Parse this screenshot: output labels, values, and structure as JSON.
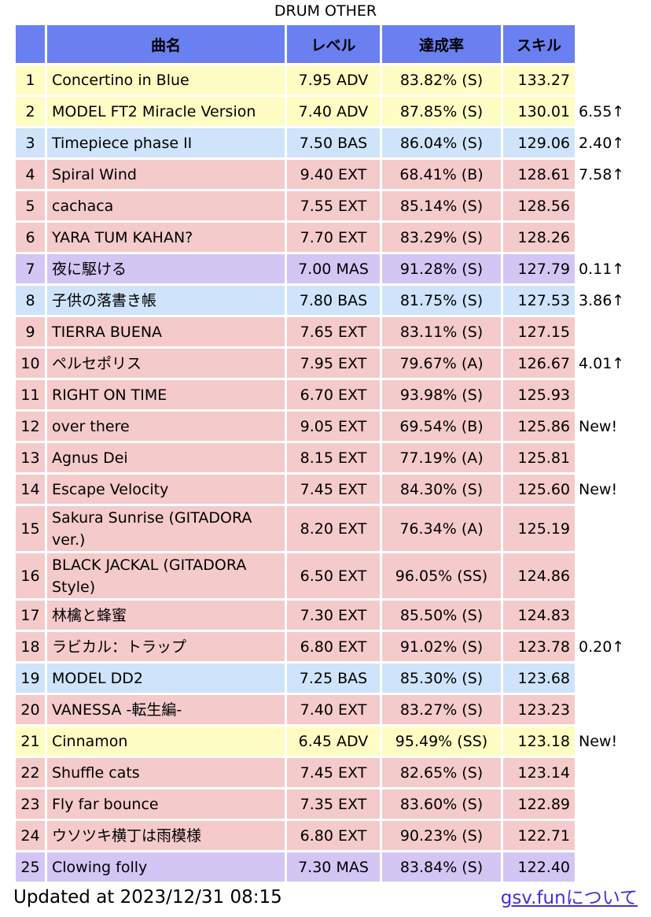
{
  "caption": "DRUM OTHER",
  "headers": {
    "num": "",
    "name": "曲名",
    "level": "レベル",
    "rate": "達成率",
    "skill": "スキル"
  },
  "difficulty_colors": {
    "BAS": "#cfe4fa",
    "ADV": "#fdfdc4",
    "EXT": "#f4cacb",
    "MAS": "#d3c6f4",
    "header": "#6a80f0"
  },
  "rows": [
    {
      "num": "1",
      "name": "Concertino in Blue",
      "level": "7.95 ADV",
      "rate": "83.82% (S)",
      "skill": "133.27",
      "diff": "",
      "cls": "adv"
    },
    {
      "num": "2",
      "name": "MODEL FT2 Miracle Version",
      "level": "7.40 ADV",
      "rate": "87.85% (S)",
      "skill": "130.01",
      "diff": "6.55↑",
      "cls": "adv"
    },
    {
      "num": "3",
      "name": "Timepiece phase II",
      "level": "7.50 BAS",
      "rate": "86.04% (S)",
      "skill": "129.06",
      "diff": "2.40↑",
      "cls": "bas"
    },
    {
      "num": "4",
      "name": "Spiral Wind",
      "level": "9.40 EXT",
      "rate": "68.41% (B)",
      "skill": "128.61",
      "diff": "7.58↑",
      "cls": "ext"
    },
    {
      "num": "5",
      "name": "cachaca",
      "level": "7.55 EXT",
      "rate": "85.14% (S)",
      "skill": "128.56",
      "diff": "",
      "cls": "ext"
    },
    {
      "num": "6",
      "name": "YARA TUM KAHAN?",
      "level": "7.70 EXT",
      "rate": "83.29% (S)",
      "skill": "128.26",
      "diff": "",
      "cls": "ext"
    },
    {
      "num": "7",
      "name": "夜に駆ける",
      "level": "7.00 MAS",
      "rate": "91.28% (S)",
      "skill": "127.79",
      "diff": "0.11↑",
      "cls": "mas"
    },
    {
      "num": "8",
      "name": "子供の落書き帳",
      "level": "7.80 BAS",
      "rate": "81.75% (S)",
      "skill": "127.53",
      "diff": "3.86↑",
      "cls": "bas"
    },
    {
      "num": "9",
      "name": "TIERRA BUENA",
      "level": "7.65 EXT",
      "rate": "83.11% (S)",
      "skill": "127.15",
      "diff": "",
      "cls": "ext"
    },
    {
      "num": "10",
      "name": "ペルセポリス",
      "level": "7.95 EXT",
      "rate": "79.67% (A)",
      "skill": "126.67",
      "diff": "4.01↑",
      "cls": "ext"
    },
    {
      "num": "11",
      "name": "RIGHT ON TIME",
      "level": "6.70 EXT",
      "rate": "93.98% (S)",
      "skill": "125.93",
      "diff": "",
      "cls": "ext"
    },
    {
      "num": "12",
      "name": "over there",
      "level": "9.05 EXT",
      "rate": "69.54% (B)",
      "skill": "125.86",
      "diff": "New!",
      "cls": "ext"
    },
    {
      "num": "13",
      "name": "Agnus Dei",
      "level": "8.15 EXT",
      "rate": "77.19% (A)",
      "skill": "125.81",
      "diff": "",
      "cls": "ext"
    },
    {
      "num": "14",
      "name": "Escape Velocity",
      "level": "7.45 EXT",
      "rate": "84.30% (S)",
      "skill": "125.60",
      "diff": "New!",
      "cls": "ext"
    },
    {
      "num": "15",
      "name": "Sakura Sunrise (GITADORA ver.)",
      "level": "8.20 EXT",
      "rate": "76.34% (A)",
      "skill": "125.19",
      "diff": "",
      "cls": "ext",
      "tall": true
    },
    {
      "num": "16",
      "name": "BLACK JACKAL (GITADORA Style)",
      "level": "6.50 EXT",
      "rate": "96.05% (SS)",
      "skill": "124.86",
      "diff": "",
      "cls": "ext",
      "tall": true
    },
    {
      "num": "17",
      "name": "林檎と蜂蜜",
      "level": "7.30 EXT",
      "rate": "85.50% (S)",
      "skill": "124.83",
      "diff": "",
      "cls": "ext"
    },
    {
      "num": "18",
      "name": "ラビカル：トラップ",
      "level": "6.80 EXT",
      "rate": "91.02% (S)",
      "skill": "123.78",
      "diff": "0.20↑",
      "cls": "ext"
    },
    {
      "num": "19",
      "name": "MODEL DD2",
      "level": "7.25 BAS",
      "rate": "85.30% (S)",
      "skill": "123.68",
      "diff": "",
      "cls": "bas"
    },
    {
      "num": "20",
      "name": "VANESSA -転生編-",
      "level": "7.40 EXT",
      "rate": "83.27% (S)",
      "skill": "123.23",
      "diff": "",
      "cls": "ext"
    },
    {
      "num": "21",
      "name": "Cinnamon",
      "level": "6.45 ADV",
      "rate": "95.49% (SS)",
      "skill": "123.18",
      "diff": "New!",
      "cls": "adv"
    },
    {
      "num": "22",
      "name": "Shuffle cats",
      "level": "7.45 EXT",
      "rate": "82.65% (S)",
      "skill": "123.14",
      "diff": "",
      "cls": "ext"
    },
    {
      "num": "23",
      "name": "Fly far bounce",
      "level": "7.35 EXT",
      "rate": "83.60% (S)",
      "skill": "122.89",
      "diff": "",
      "cls": "ext"
    },
    {
      "num": "24",
      "name": "ウソツキ横丁は雨模様",
      "level": "6.80 EXT",
      "rate": "90.23% (S)",
      "skill": "122.71",
      "diff": "",
      "cls": "ext"
    },
    {
      "num": "25",
      "name": "Clowing folly",
      "level": "7.30 MAS",
      "rate": "83.84% (S)",
      "skill": "122.40",
      "diff": "",
      "cls": "mas"
    }
  ],
  "footer": {
    "updated": "Updated at 2023/12/31 08:15",
    "about_link": "gsv.funについて"
  }
}
